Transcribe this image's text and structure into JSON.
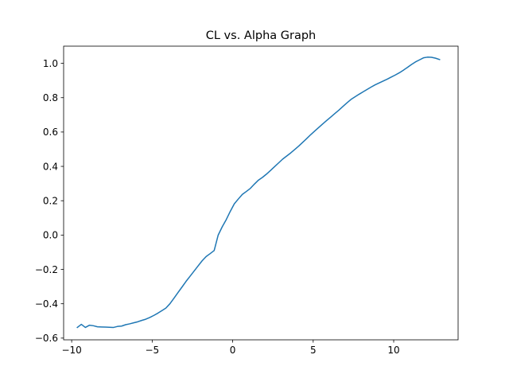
{
  "chart_data": {
    "type": "line",
    "title": "CL vs. Alpha Graph",
    "xlabel": "",
    "ylabel": "",
    "xlim": [
      -10.5,
      14
    ],
    "ylim": [
      -0.61,
      1.1
    ],
    "xticks": [
      -10,
      -5,
      0,
      5,
      10
    ],
    "xtick_labels": [
      "−10",
      "−5",
      "0",
      "5",
      "10"
    ],
    "yticks": [
      -0.6,
      -0.4,
      -0.2,
      0.0,
      0.2,
      0.4,
      0.6,
      0.8,
      1.0
    ],
    "ytick_labels": [
      "−0.6",
      "−0.4",
      "−0.2",
      "0.0",
      "0.2",
      "0.4",
      "0.6",
      "0.8",
      "1.0"
    ],
    "grid": false,
    "legend": "none",
    "series": [
      {
        "color": "#1f77b4",
        "x": [
          -9.65,
          -9.4,
          -9.15,
          -8.9,
          -8.65,
          -8.4,
          -8.15,
          -7.9,
          -7.65,
          -7.4,
          -7.15,
          -6.9,
          -6.65,
          -6.4,
          -6.15,
          -5.9,
          -5.65,
          -5.4,
          -5.15,
          -4.9,
          -4.65,
          -4.4,
          -4.15,
          -3.9,
          -3.65,
          -3.4,
          -3.15,
          -2.9,
          -2.65,
          -2.4,
          -2.15,
          -1.9,
          -1.65,
          -1.4,
          -1.15,
          -0.9,
          -0.65,
          -0.4,
          -0.15,
          0.1,
          0.35,
          0.6,
          0.85,
          1.1,
          1.35,
          1.6,
          1.85,
          2.1,
          2.35,
          2.6,
          2.85,
          3.1,
          3.35,
          3.6,
          3.85,
          4.1,
          4.35,
          4.6,
          4.85,
          5.1,
          5.35,
          5.6,
          5.85,
          6.1,
          6.35,
          6.6,
          6.85,
          7.1,
          7.35,
          7.6,
          7.85,
          8.1,
          8.35,
          8.6,
          8.85,
          9.1,
          9.35,
          9.6,
          9.85,
          10.1,
          10.35,
          10.6,
          10.85,
          11.1,
          11.35,
          11.6,
          11.85,
          12.1,
          12.35,
          12.6,
          12.85
        ],
        "y": [
          -0.538,
          -0.52,
          -0.538,
          -0.525,
          -0.528,
          -0.534,
          -0.535,
          -0.536,
          -0.537,
          -0.538,
          -0.532,
          -0.53,
          -0.522,
          -0.517,
          -0.511,
          -0.505,
          -0.497,
          -0.49,
          -0.48,
          -0.468,
          -0.455,
          -0.44,
          -0.425,
          -0.4,
          -0.368,
          -0.335,
          -0.303,
          -0.27,
          -0.24,
          -0.21,
          -0.18,
          -0.15,
          -0.125,
          -0.108,
          -0.09,
          0.0,
          0.048,
          0.09,
          0.138,
          0.182,
          0.21,
          0.237,
          0.254,
          0.272,
          0.297,
          0.32,
          0.336,
          0.355,
          0.376,
          0.398,
          0.42,
          0.442,
          0.46,
          0.478,
          0.498,
          0.518,
          0.54,
          0.562,
          0.585,
          0.606,
          0.627,
          0.648,
          0.668,
          0.688,
          0.708,
          0.728,
          0.749,
          0.77,
          0.79,
          0.805,
          0.82,
          0.834,
          0.848,
          0.862,
          0.875,
          0.886,
          0.897,
          0.908,
          0.92,
          0.932,
          0.945,
          0.96,
          0.976,
          0.993,
          1.008,
          1.02,
          1.032,
          1.036,
          1.035,
          1.03,
          1.022
        ]
      }
    ]
  }
}
